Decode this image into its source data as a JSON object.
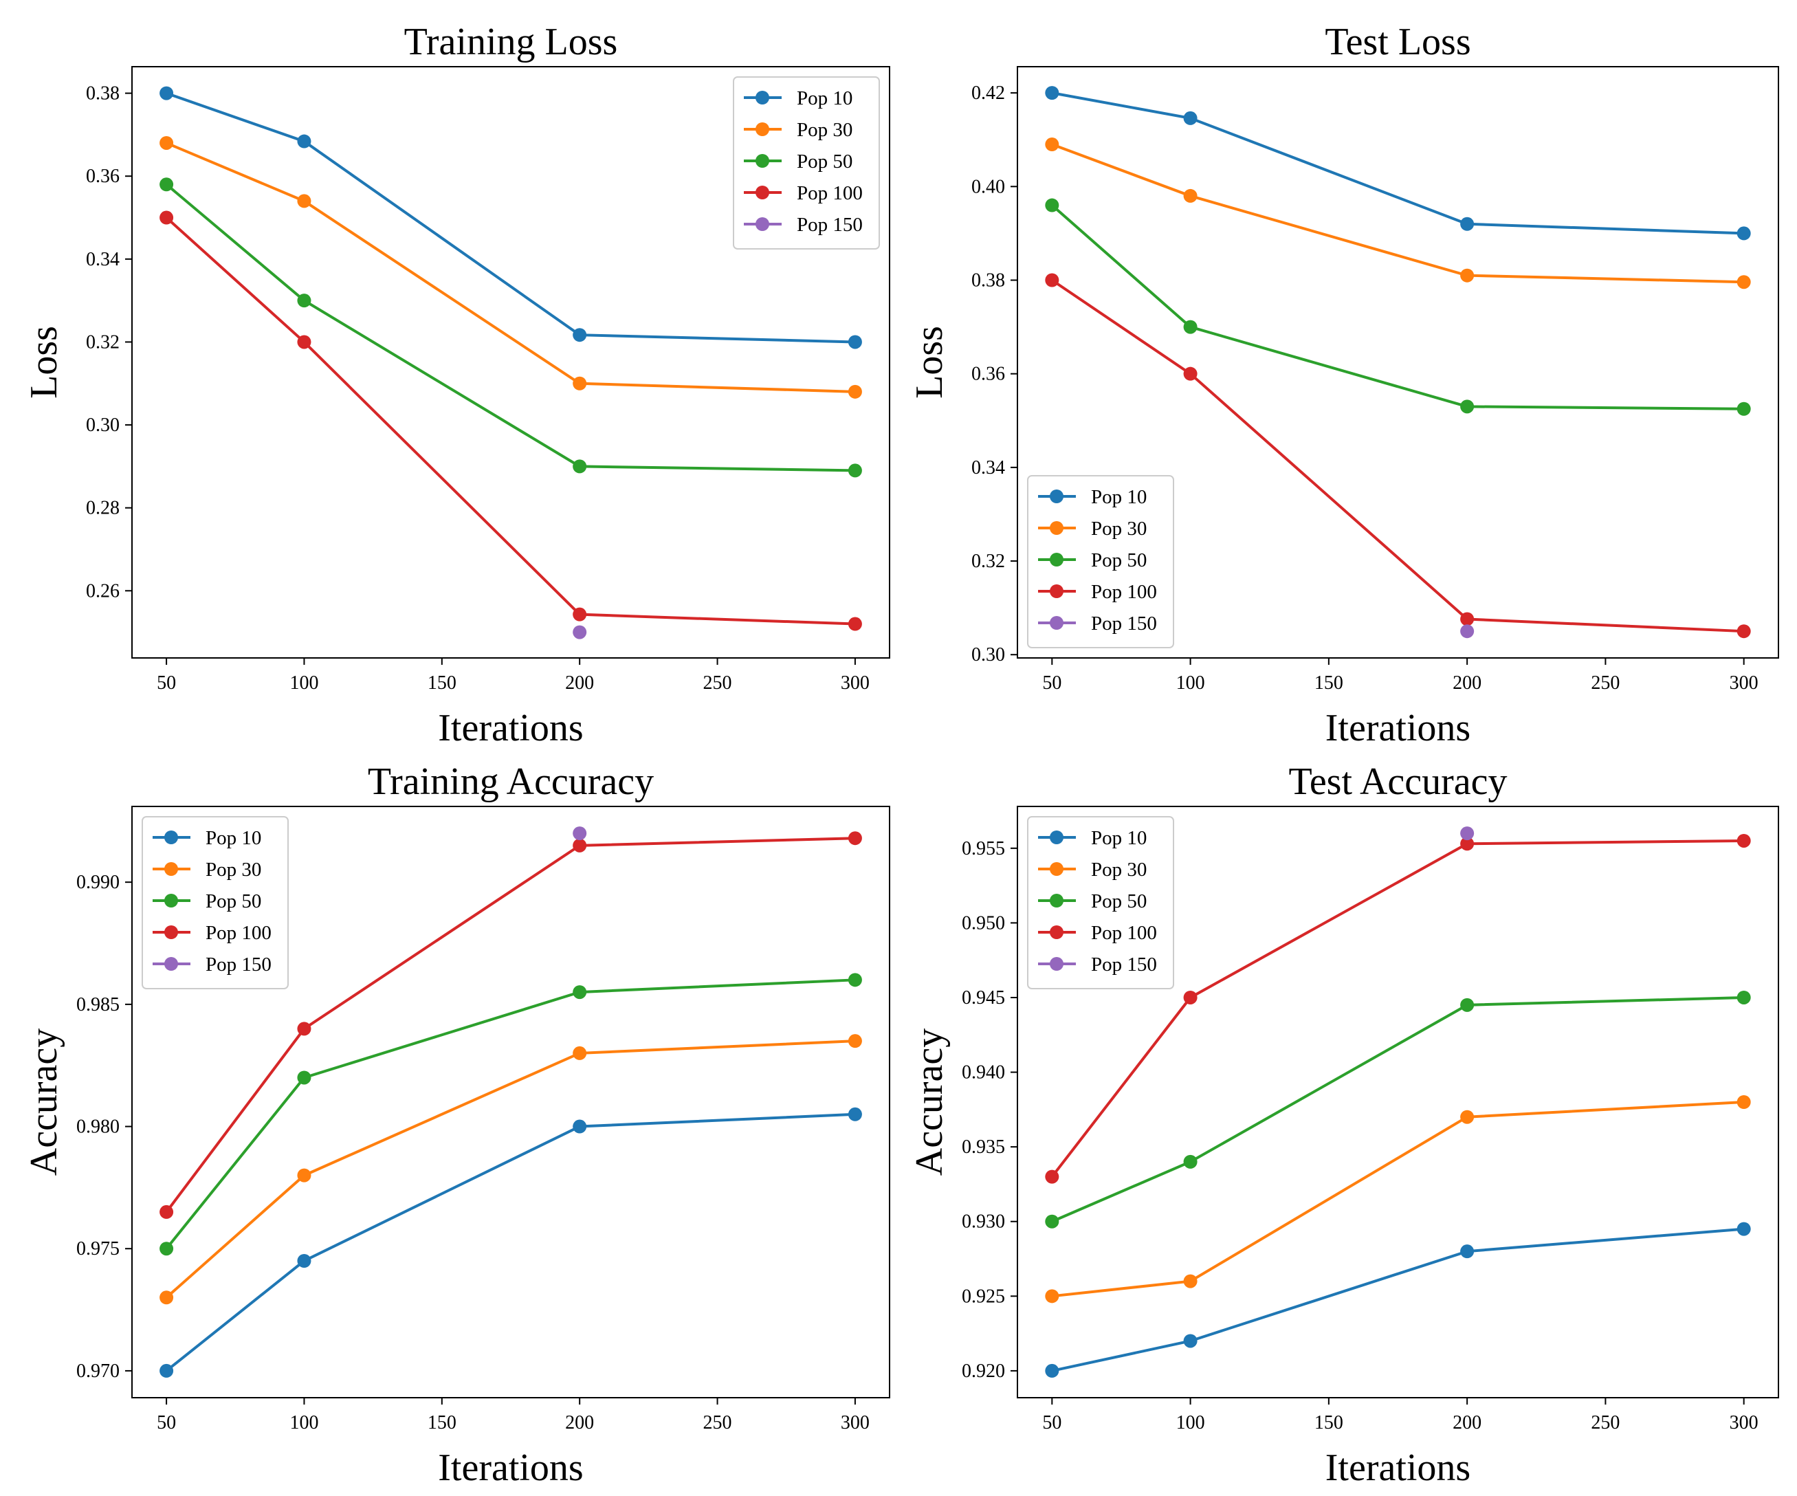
{
  "chart_data": [
    {
      "type": "line",
      "title": "Training Loss",
      "xlabel": "Iterations",
      "ylabel": "Loss",
      "xlim": [
        37.5,
        312.5
      ],
      "ylim": [
        0.2438,
        0.3864
      ],
      "xticks": [
        50,
        100,
        150,
        200,
        250,
        300
      ],
      "yticks": [
        0.26,
        0.28,
        0.3,
        0.32,
        0.34,
        0.36,
        0.38
      ],
      "ytick_decimals": 2,
      "legend": "upper-right",
      "grid": false,
      "series": [
        {
          "name": "Pop 10",
          "color": "#1f77b4",
          "x": [
            50,
            100,
            200,
            300
          ],
          "y": [
            0.38,
            0.3684,
            0.3217,
            0.32
          ]
        },
        {
          "name": "Pop 30",
          "color": "#ff7f0e",
          "x": [
            50,
            100,
            200,
            300
          ],
          "y": [
            0.368,
            0.354,
            0.31,
            0.308
          ]
        },
        {
          "name": "Pop 50",
          "color": "#2ca02c",
          "x": [
            50,
            100,
            200,
            300
          ],
          "y": [
            0.358,
            0.33,
            0.29,
            0.289
          ]
        },
        {
          "name": "Pop 100",
          "color": "#d62728",
          "x": [
            50,
            100,
            200,
            300
          ],
          "y": [
            0.35,
            0.32,
            0.2543,
            0.252
          ]
        },
        {
          "name": "Pop 150",
          "color": "#9467bd",
          "x": [
            200
          ],
          "y": [
            0.25
          ]
        }
      ]
    },
    {
      "type": "line",
      "title": "Test Loss",
      "xlabel": "Iterations",
      "ylabel": "Loss",
      "xlim": [
        37.5,
        312.5
      ],
      "ylim": [
        0.2993,
        0.4256
      ],
      "xticks": [
        50,
        100,
        150,
        200,
        250,
        300
      ],
      "yticks": [
        0.3,
        0.32,
        0.34,
        0.36,
        0.38,
        0.4,
        0.42
      ],
      "ytick_decimals": 2,
      "legend": "lower-left",
      "grid": false,
      "series": [
        {
          "name": "Pop 10",
          "color": "#1f77b4",
          "x": [
            50,
            100,
            200,
            300
          ],
          "y": [
            0.42,
            0.4146,
            0.392,
            0.39
          ]
        },
        {
          "name": "Pop 30",
          "color": "#ff7f0e",
          "x": [
            50,
            100,
            200,
            300
          ],
          "y": [
            0.409,
            0.398,
            0.381,
            0.3796
          ]
        },
        {
          "name": "Pop 50",
          "color": "#2ca02c",
          "x": [
            50,
            100,
            200,
            300
          ],
          "y": [
            0.396,
            0.37,
            0.353,
            0.3525
          ]
        },
        {
          "name": "Pop 100",
          "color": "#d62728",
          "x": [
            50,
            100,
            200,
            300
          ],
          "y": [
            0.38,
            0.36,
            0.3076,
            0.305
          ]
        },
        {
          "name": "Pop 150",
          "color": "#9467bd",
          "x": [
            200
          ],
          "y": [
            0.305
          ]
        }
      ]
    },
    {
      "type": "line",
      "title": "Training Accuracy",
      "xlabel": "Iterations",
      "ylabel": "Accuracy",
      "xlim": [
        37.5,
        312.5
      ],
      "ylim": [
        0.9689,
        0.9931
      ],
      "xticks": [
        50,
        100,
        150,
        200,
        250,
        300
      ],
      "yticks": [
        0.97,
        0.975,
        0.98,
        0.985,
        0.99
      ],
      "ytick_decimals": 3,
      "legend": "upper-left",
      "grid": false,
      "series": [
        {
          "name": "Pop 10",
          "color": "#1f77b4",
          "x": [
            50,
            100,
            200,
            300
          ],
          "y": [
            0.97,
            0.9745,
            0.98,
            0.9805
          ]
        },
        {
          "name": "Pop 30",
          "color": "#ff7f0e",
          "x": [
            50,
            100,
            200,
            300
          ],
          "y": [
            0.973,
            0.978,
            0.983,
            0.9835
          ]
        },
        {
          "name": "Pop 50",
          "color": "#2ca02c",
          "x": [
            50,
            100,
            200,
            300
          ],
          "y": [
            0.975,
            0.982,
            0.9855,
            0.986
          ]
        },
        {
          "name": "Pop 100",
          "color": "#d62728",
          "x": [
            50,
            100,
            200,
            300
          ],
          "y": [
            0.9765,
            0.984,
            0.9915,
            0.9918
          ]
        },
        {
          "name": "Pop 150",
          "color": "#9467bd",
          "x": [
            200
          ],
          "y": [
            0.992
          ]
        }
      ]
    },
    {
      "type": "line",
      "title": "Test Accuracy",
      "xlabel": "Iterations",
      "ylabel": "Accuracy",
      "xlim": [
        37.5,
        312.5
      ],
      "ylim": [
        0.9182,
        0.9578
      ],
      "xticks": [
        50,
        100,
        150,
        200,
        250,
        300
      ],
      "yticks": [
        0.92,
        0.925,
        0.93,
        0.935,
        0.94,
        0.945,
        0.95,
        0.955
      ],
      "ytick_decimals": 3,
      "legend": "upper-left",
      "grid": false,
      "series": [
        {
          "name": "Pop 10",
          "color": "#1f77b4",
          "x": [
            50,
            100,
            200,
            300
          ],
          "y": [
            0.92,
            0.922,
            0.928,
            0.9295
          ]
        },
        {
          "name": "Pop 30",
          "color": "#ff7f0e",
          "x": [
            50,
            100,
            200,
            300
          ],
          "y": [
            0.925,
            0.926,
            0.937,
            0.938
          ]
        },
        {
          "name": "Pop 50",
          "color": "#2ca02c",
          "x": [
            50,
            100,
            200,
            300
          ],
          "y": [
            0.93,
            0.934,
            0.9445,
            0.945
          ]
        },
        {
          "name": "Pop 100",
          "color": "#d62728",
          "x": [
            50,
            100,
            200,
            300
          ],
          "y": [
            0.933,
            0.945,
            0.9553,
            0.9555
          ]
        },
        {
          "name": "Pop 150",
          "color": "#9467bd",
          "x": [
            200
          ],
          "y": [
            0.956
          ]
        }
      ]
    }
  ]
}
